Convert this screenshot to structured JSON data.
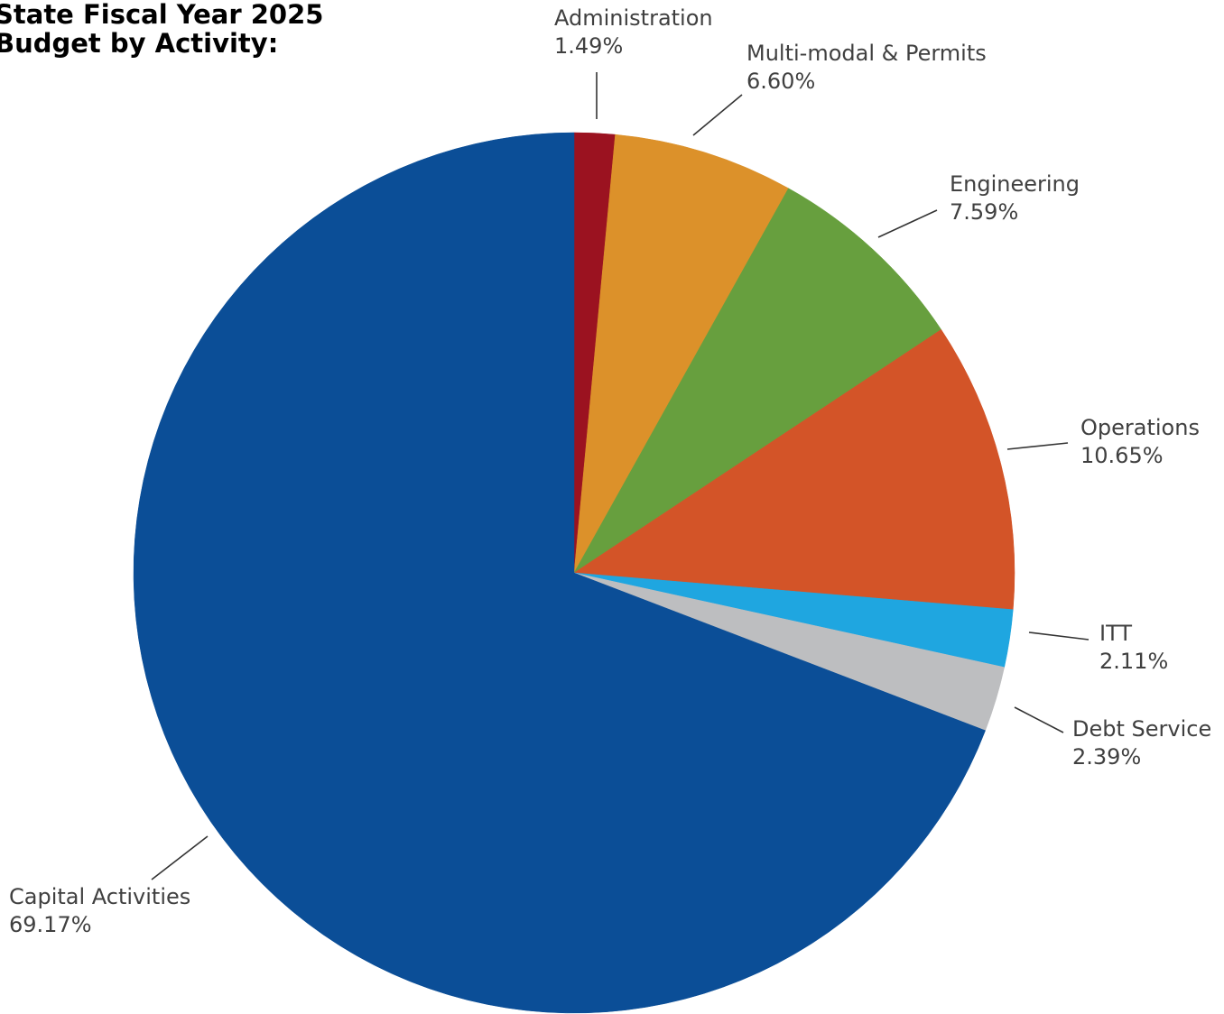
{
  "chart_data": {
    "type": "pie",
    "title": [
      "State Fiscal Year 2025",
      "Budget by Activity:"
    ],
    "slices": [
      {
        "label": "Administration",
        "value_label": "1.49%",
        "value": 1.49,
        "color": "#9b1220"
      },
      {
        "label": "Multi-modal & Permits",
        "value_label": "6.60%",
        "value": 6.6,
        "color": "#dc912a"
      },
      {
        "label": "Engineering",
        "value_label": "7.59%",
        "value": 7.59,
        "color": "#679f3e"
      },
      {
        "label": "Operations",
        "value_label": "10.65%",
        "value": 10.65,
        "color": "#d35428"
      },
      {
        "label": "ITT",
        "value_label": "2.11%",
        "value": 2.11,
        "color": "#1fa6e0"
      },
      {
        "label": "Debt Service",
        "value_label": "2.39%",
        "value": 2.39,
        "color": "#bdbec0"
      },
      {
        "label": "Capital Activities",
        "value_label": "69.17%",
        "value": 69.17,
        "color": "#0b4e97"
      }
    ],
    "start_angle": "12 o'clock",
    "direction": "clockwise",
    "legend": "none (labels placed beside slices)"
  }
}
